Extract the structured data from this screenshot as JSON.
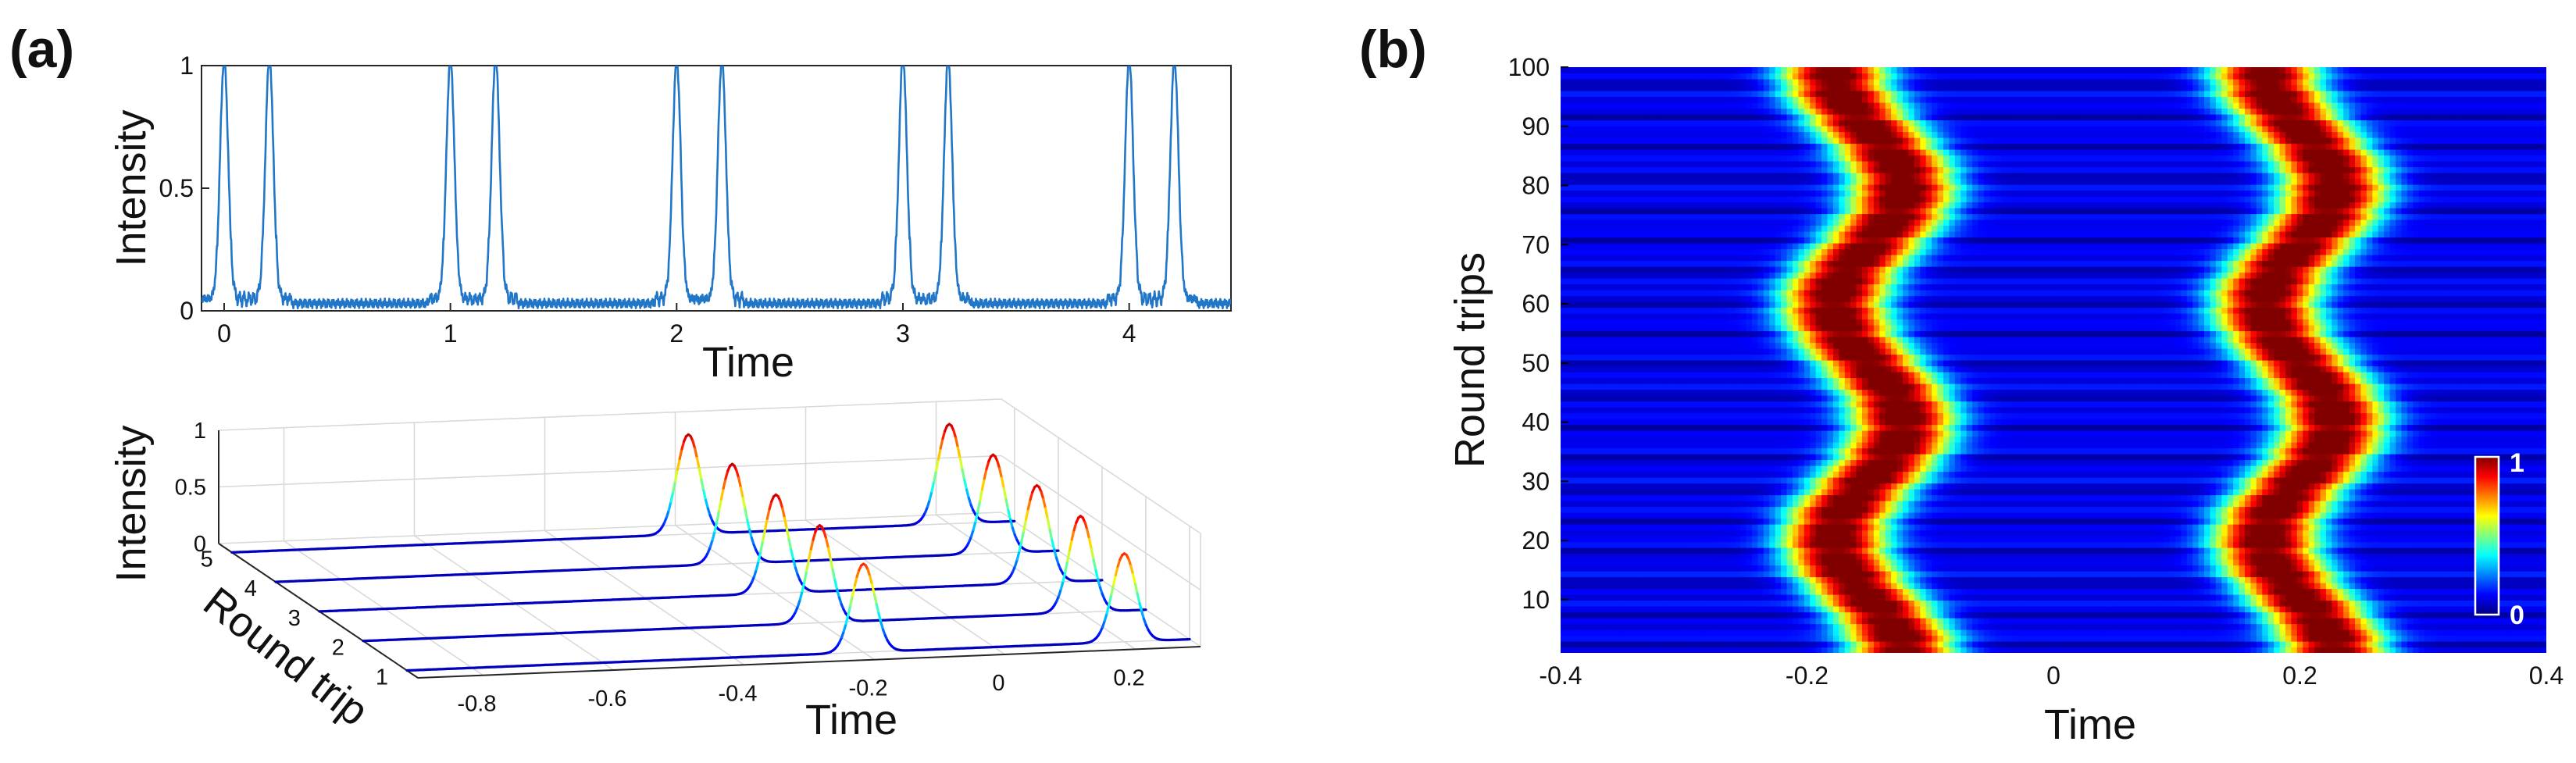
{
  "panel_labels": {
    "a": "(a)",
    "b": "(b)"
  },
  "chart_data": [
    {
      "id": "a-top",
      "type": "line",
      "panel": "(a)",
      "xlabel": "Time",
      "ylabel": "Intensity",
      "xlim": [
        -0.1,
        4.45
      ],
      "ylim": [
        0,
        1
      ],
      "xticks": [
        0,
        1,
        2,
        3,
        4
      ],
      "yticks": [
        0,
        0.5,
        1
      ],
      "color": "#2176c7",
      "pulse_pairs": [
        [
          0,
          0.2
        ],
        [
          1,
          1.2
        ],
        [
          2,
          2.2
        ],
        [
          3,
          3.2
        ],
        [
          4,
          4.2
        ]
      ],
      "pulse_peak": 1.0,
      "background_level": 0.03
    },
    {
      "id": "a-bottom",
      "type": "line3d",
      "panel": "(a)",
      "xlabel": "Time",
      "ylabel": "Round trip",
      "zlabel": "Intensity",
      "xlim": [
        -0.9,
        0.3
      ],
      "xticks": [
        -0.8,
        -0.6,
        -0.4,
        -0.2,
        0,
        0.2
      ],
      "xtick_labels": [
        "-0.8",
        "-0.6",
        "-0.4",
        "-0.2",
        "0",
        "0.2"
      ],
      "yticks": [
        1,
        2,
        3,
        4,
        5
      ],
      "zlim": [
        0,
        1
      ],
      "zticks": [
        0,
        0.5,
        1
      ],
      "colormap": "jet",
      "traces": [
        {
          "round_trip": 1,
          "pulses": [
            {
              "t": -0.2,
              "peak": 0.78
            },
            {
              "t": 0.2,
              "peak": 0.78
            }
          ]
        },
        {
          "round_trip": 2,
          "pulses": [
            {
              "t": -0.2,
              "peak": 0.86
            },
            {
              "t": 0.2,
              "peak": 0.85
            }
          ]
        },
        {
          "round_trip": 3,
          "pulses": [
            {
              "t": -0.2,
              "peak": 0.87
            },
            {
              "t": 0.2,
              "peak": 0.86
            }
          ]
        },
        {
          "round_trip": 4,
          "pulses": [
            {
              "t": -0.2,
              "peak": 0.88
            },
            {
              "t": 0.2,
              "peak": 0.87
            }
          ]
        },
        {
          "round_trip": 5,
          "pulses": [
            {
              "t": -0.2,
              "peak": 0.88
            },
            {
              "t": 0.2,
              "peak": 0.88
            }
          ]
        }
      ]
    },
    {
      "id": "b",
      "type": "heatmap",
      "panel": "(b)",
      "xlabel": "Time",
      "ylabel": "Round trips",
      "xlim": [
        -0.4,
        0.4
      ],
      "ylim": [
        1,
        100
      ],
      "xticks": [
        -0.4,
        -0.2,
        0,
        0.2,
        0.4
      ],
      "xtick_labels": [
        "-0.4",
        "-0.2",
        "0",
        "0.2",
        "0.4"
      ],
      "yticks": [
        10,
        20,
        30,
        40,
        50,
        60,
        70,
        80,
        90,
        100
      ],
      "colormap": "jet",
      "colorbar": {
        "min": 0,
        "max": 1,
        "labels": [
          "0",
          "1"
        ]
      },
      "pulses": [
        {
          "name": "left pulse",
          "center_time": -0.15,
          "drift_amplitude": 0.028,
          "drift_period_round_trips": 40,
          "width": 0.032
        },
        {
          "name": "right pulse",
          "center_time": 0.2,
          "drift_amplitude": 0.028,
          "drift_period_round_trips": 40,
          "width": 0.032
        }
      ]
    }
  ]
}
